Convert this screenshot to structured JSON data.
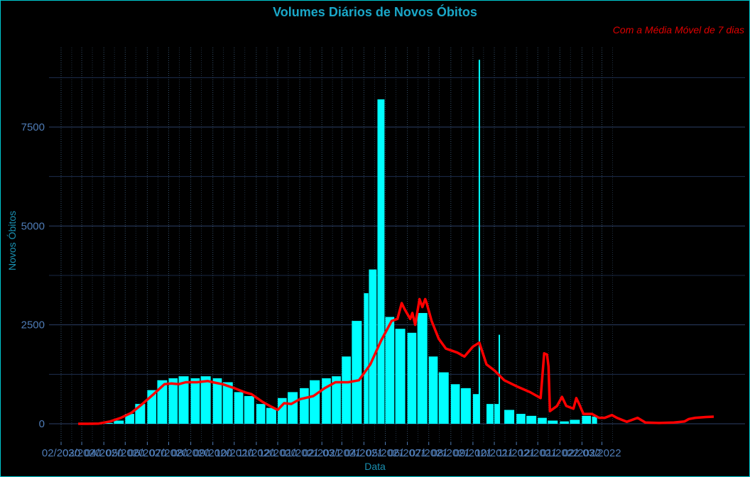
{
  "chart_data": {
    "type": "bar",
    "title": "Volumes Diários de Novos Óbitos",
    "subtitle": "Com a Média Móvel de 7 dias",
    "xlabel": "Data",
    "ylabel": "Novos Óbitos",
    "ylim": [
      -500,
      9300
    ],
    "yticks": [
      0,
      2500,
      5000,
      7500
    ],
    "grid": true,
    "bar_color": "#00ffff",
    "line_color": "#ff0000",
    "background": "#000000",
    "x_tick_labels": [
      "02/2020",
      "03/2020",
      "04/2020",
      "05/2020",
      "06/2020",
      "07/2020",
      "08/2020",
      "09/2020",
      "10/2020",
      "11/2020",
      "12/2020",
      "01/2021",
      "02/2021",
      "03/2021",
      "04/2021",
      "05/2021",
      "06/2021",
      "07/2021",
      "08/2021",
      "09/2021",
      "10/2021",
      "11/2021",
      "12/2021",
      "01/2022",
      "02/2022",
      "03/2022"
    ],
    "series": [
      {
        "name": "Novos Óbitos",
        "kind": "bars",
        "points": [
          [
            "2020-03-15",
            0
          ],
          [
            "2020-04-01",
            20
          ],
          [
            "2020-04-15",
            80
          ],
          [
            "2020-05-01",
            250
          ],
          [
            "2020-05-15",
            500
          ],
          [
            "2020-06-01",
            850
          ],
          [
            "2020-06-15",
            1100
          ],
          [
            "2020-07-01",
            1150
          ],
          [
            "2020-07-15",
            1200
          ],
          [
            "2020-08-01",
            1150
          ],
          [
            "2020-08-15",
            1200
          ],
          [
            "2020-09-01",
            1150
          ],
          [
            "2020-09-15",
            1050
          ],
          [
            "2020-10-01",
            800
          ],
          [
            "2020-10-15",
            700
          ],
          [
            "2020-11-01",
            500
          ],
          [
            "2020-11-15",
            400
          ],
          [
            "2020-12-01",
            650
          ],
          [
            "2020-12-15",
            800
          ],
          [
            "2021-01-01",
            900
          ],
          [
            "2021-01-15",
            1100
          ],
          [
            "2021-02-01",
            1150
          ],
          [
            "2021-02-15",
            1200
          ],
          [
            "2021-03-01",
            1700
          ],
          [
            "2021-03-15",
            2600
          ],
          [
            "2021-04-01",
            3300
          ],
          [
            "2021-04-08",
            3900
          ],
          [
            "2021-04-20",
            8200
          ],
          [
            "2021-05-01",
            2700
          ],
          [
            "2021-05-15",
            2400
          ],
          [
            "2021-06-01",
            2300
          ],
          [
            "2021-06-15",
            2800
          ],
          [
            "2021-07-01",
            1700
          ],
          [
            "2021-07-15",
            1300
          ],
          [
            "2021-08-01",
            1000
          ],
          [
            "2021-08-15",
            900
          ],
          [
            "2021-09-01",
            750
          ],
          [
            "2021-09-10",
            9200
          ],
          [
            "2021-09-20",
            500
          ],
          [
            "2021-10-01",
            500
          ],
          [
            "2021-10-08",
            2250
          ],
          [
            "2021-10-15",
            350
          ],
          [
            "2021-11-01",
            250
          ],
          [
            "2021-11-15",
            200
          ],
          [
            "2021-12-01",
            150
          ],
          [
            "2021-12-15",
            80
          ],
          [
            "2022-01-01",
            60
          ],
          [
            "2022-01-15",
            100
          ],
          [
            "2022-02-01",
            200
          ],
          [
            "2022-02-15",
            180
          ]
        ]
      },
      {
        "name": "Média Móvel de 7 dias",
        "kind": "line",
        "points": [
          [
            "2020-02-25",
            0
          ],
          [
            "2020-03-10",
            0
          ],
          [
            "2020-03-25",
            5
          ],
          [
            "2020-04-10",
            60
          ],
          [
            "2020-04-25",
            150
          ],
          [
            "2020-05-10",
            280
          ],
          [
            "2020-05-25",
            500
          ],
          [
            "2020-06-10",
            750
          ],
          [
            "2020-06-25",
            1000
          ],
          [
            "2020-07-05",
            1020
          ],
          [
            "2020-07-15",
            1000
          ],
          [
            "2020-07-25",
            1050
          ],
          [
            "2020-08-10",
            1050
          ],
          [
            "2020-08-25",
            1080
          ],
          [
            "2020-09-01",
            1050
          ],
          [
            "2020-09-15",
            1000
          ],
          [
            "2020-10-01",
            900
          ],
          [
            "2020-10-15",
            800
          ],
          [
            "2020-10-25",
            750
          ],
          [
            "2020-11-10",
            550
          ],
          [
            "2020-11-20",
            450
          ],
          [
            "2020-12-01",
            350
          ],
          [
            "2020-12-10",
            520
          ],
          [
            "2020-12-20",
            500
          ],
          [
            "2021-01-01",
            620
          ],
          [
            "2021-01-20",
            700
          ],
          [
            "2021-02-05",
            900
          ],
          [
            "2021-02-20",
            1050
          ],
          [
            "2021-03-10",
            1050
          ],
          [
            "2021-03-25",
            1100
          ],
          [
            "2021-04-10",
            1500
          ],
          [
            "2021-04-25",
            2100
          ],
          [
            "2021-05-10",
            2600
          ],
          [
            "2021-05-18",
            2650
          ],
          [
            "2021-05-24",
            3050
          ],
          [
            "2021-05-28",
            2900
          ],
          [
            "2021-06-05",
            2650
          ],
          [
            "2021-06-08",
            2800
          ],
          [
            "2021-06-12",
            2500
          ],
          [
            "2021-06-18",
            3150
          ],
          [
            "2021-06-22",
            2950
          ],
          [
            "2021-06-26",
            3150
          ],
          [
            "2021-06-28",
            3050
          ],
          [
            "2021-07-05",
            2600
          ],
          [
            "2021-07-15",
            2150
          ],
          [
            "2021-07-25",
            1900
          ],
          [
            "2021-08-10",
            1800
          ],
          [
            "2021-08-20",
            1700
          ],
          [
            "2021-09-01",
            1950
          ],
          [
            "2021-09-10",
            2050
          ],
          [
            "2021-09-20",
            1500
          ],
          [
            "2021-10-01",
            1350
          ],
          [
            "2021-10-15",
            1100
          ],
          [
            "2021-11-01",
            950
          ],
          [
            "2021-11-20",
            800
          ],
          [
            "2021-12-05",
            650
          ],
          [
            "2021-12-10",
            1780
          ],
          [
            "2021-12-14",
            1750
          ],
          [
            "2021-12-16",
            1450
          ],
          [
            "2021-12-18",
            320
          ],
          [
            "2021-12-28",
            450
          ],
          [
            "2022-01-04",
            680
          ],
          [
            "2022-01-10",
            450
          ],
          [
            "2022-01-20",
            380
          ],
          [
            "2022-01-24",
            650
          ],
          [
            "2022-01-28",
            500
          ],
          [
            "2022-02-03",
            250
          ],
          [
            "2022-02-15",
            250
          ],
          [
            "2022-02-25",
            150
          ],
          [
            "2022-03-05",
            150
          ],
          [
            "2022-03-15",
            220
          ],
          [
            "2022-03-22",
            150
          ],
          [
            "2022-04-05",
            50
          ],
          [
            "2022-04-20",
            150
          ],
          [
            "2022-05-01",
            30
          ],
          [
            "2022-05-20",
            20
          ],
          [
            "2022-06-10",
            30
          ],
          [
            "2022-06-25",
            60
          ],
          [
            "2022-07-01",
            120
          ],
          [
            "2022-07-10",
            150
          ],
          [
            "2022-07-25",
            170
          ],
          [
            "2022-08-05",
            180
          ]
        ]
      }
    ]
  }
}
